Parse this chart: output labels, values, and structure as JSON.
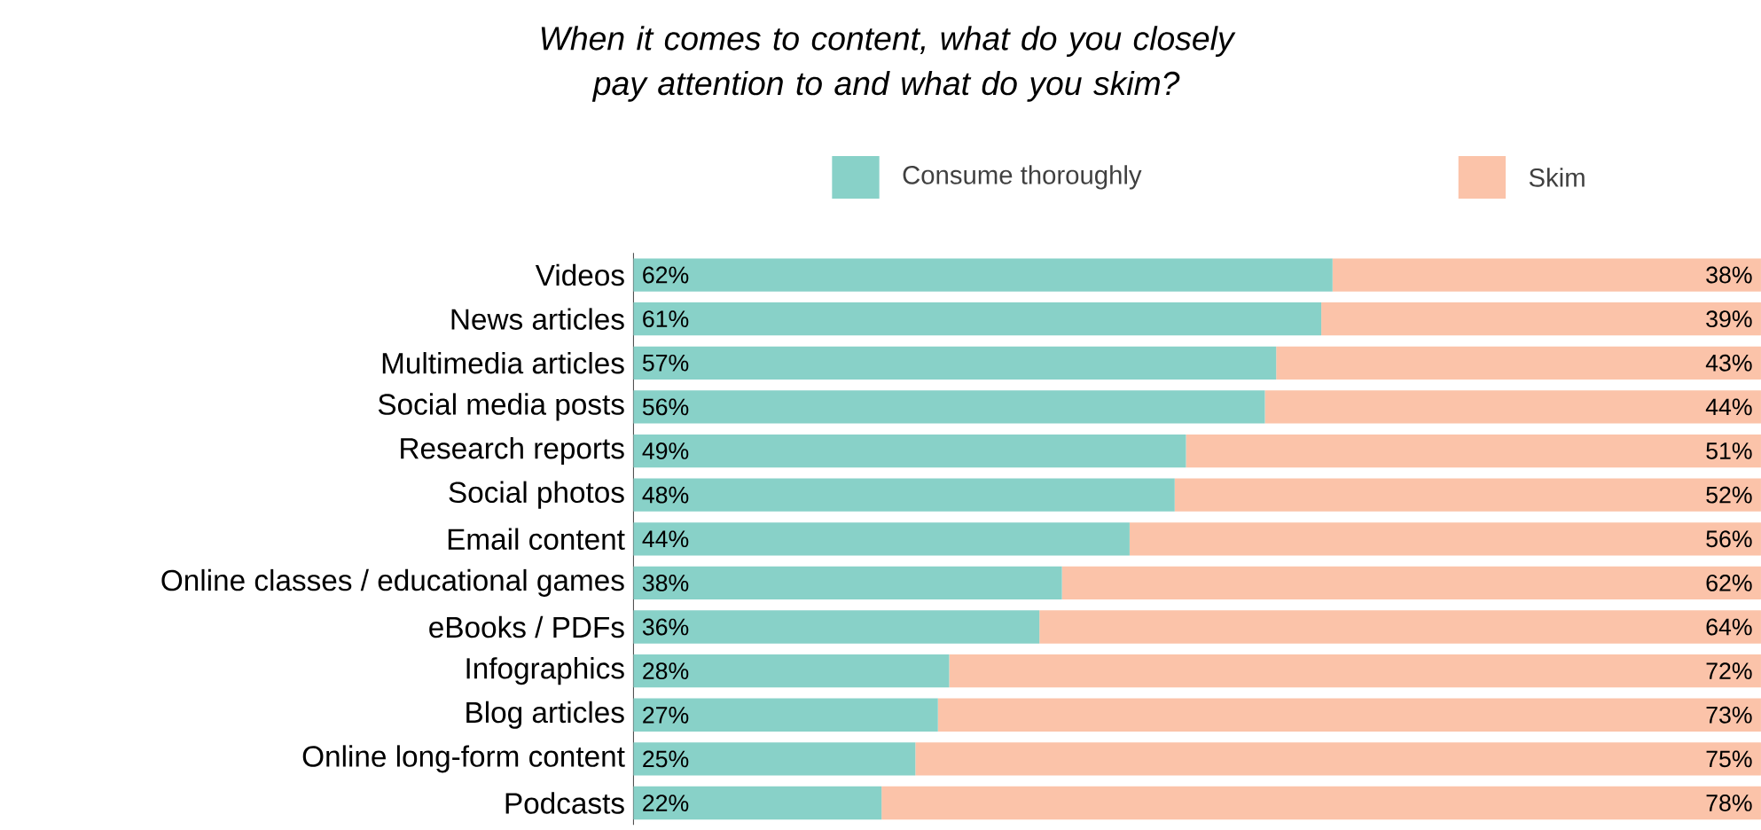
{
  "chart_data": {
    "type": "bar",
    "orientation": "horizontal",
    "stacked": true,
    "title": "When it comes to content, what do you closely pay attention to and what do you skim?",
    "categories": [
      "Videos",
      "News articles",
      "Multimedia articles",
      "Social media posts",
      "Research reports",
      "Social photos",
      "Email content",
      "Online classes / educational games",
      "eBooks / PDFs",
      "Infographics",
      "Blog articles",
      "Online long-form content",
      "Podcasts"
    ],
    "series": [
      {
        "name": "Consume thoroughly",
        "color": "#88d1c8",
        "values": [
          62,
          61,
          57,
          56,
          49,
          48,
          44,
          38,
          36,
          28,
          27,
          25,
          22
        ],
        "value_labels": [
          "62%",
          "61%",
          "57%",
          "56%",
          "49%",
          "48%",
          "44%",
          "38%",
          "36%",
          "28%",
          "27%",
          "25%",
          "22%"
        ]
      },
      {
        "name": "Skim",
        "color": "#fbc3a9",
        "values": [
          38,
          39,
          43,
          44,
          51,
          52,
          56,
          62,
          64,
          72,
          73,
          75,
          78
        ],
        "value_labels": [
          "38%",
          "39%",
          "43%",
          "44%",
          "51%",
          "52%",
          "56%",
          "62%",
          "64%",
          "72%",
          "73%",
          "75%",
          "78%"
        ]
      }
    ],
    "xlim": [
      0,
      100
    ],
    "legend": "top right",
    "tick_labels": "y"
  }
}
